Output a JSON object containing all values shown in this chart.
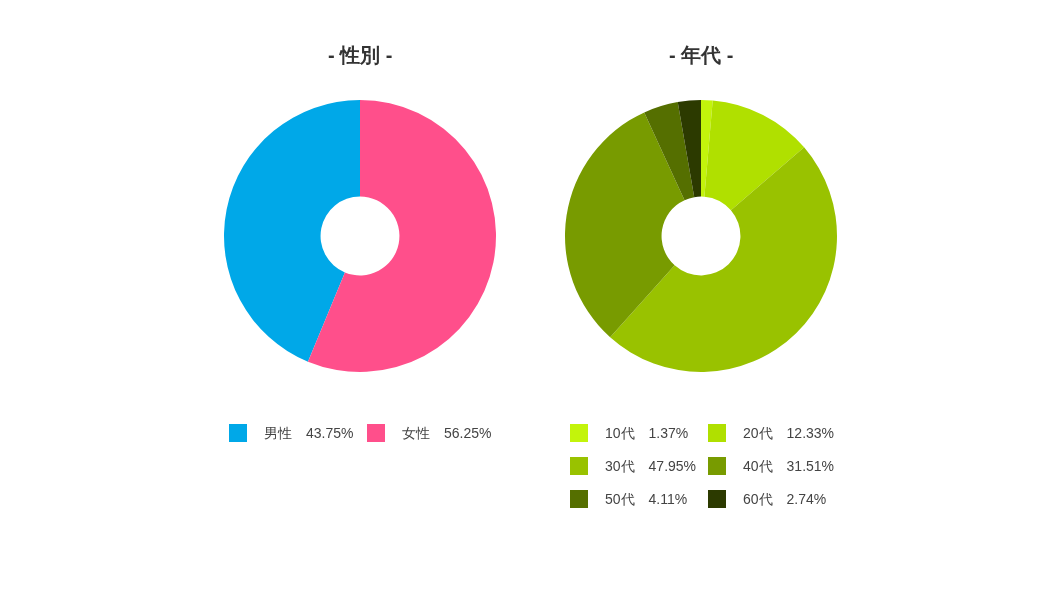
{
  "chart_data": [
    {
      "type": "donut",
      "title": "- 性別 -",
      "categories": [
        "男性",
        "女性"
      ],
      "values": [
        43.75,
        56.25
      ],
      "colors": [
        "#00a8e8",
        "#ff4f8b"
      ],
      "value_labels": [
        "43.75%",
        "56.25%"
      ],
      "legend": "bottom"
    },
    {
      "type": "donut",
      "title": "- 年代 -",
      "categories": [
        "10代",
        "20代",
        "30代",
        "40代",
        "50代",
        "60代"
      ],
      "values": [
        1.37,
        12.33,
        47.95,
        31.51,
        4.11,
        2.74
      ],
      "colors": [
        "#c3f40b",
        "#b0e000",
        "#99c200",
        "#789b00",
        "#556f00",
        "#2c3a00"
      ],
      "value_labels": [
        "1.37%",
        "12.33%",
        "47.95%",
        "31.51%",
        "4.11%",
        "2.74%"
      ],
      "legend": "bottom"
    }
  ]
}
